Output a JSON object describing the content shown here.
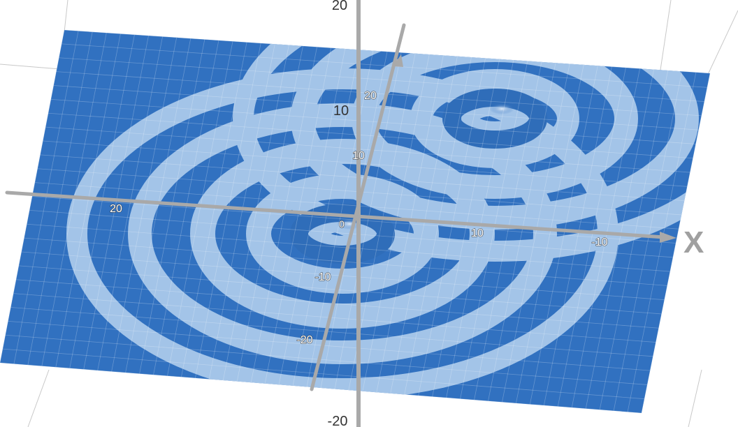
{
  "chart_data": {
    "type": "surface-3d",
    "description_text": "",
    "axes": {
      "x": {
        "label": "X",
        "ticks": [
          "20",
          "10",
          "0",
          "-10",
          "-20"
        ]
      },
      "y": {
        "ticks": [
          "20",
          "10",
          "-10",
          "-20"
        ]
      },
      "z": {
        "ticks": [
          "20",
          "10",
          "-20"
        ]
      }
    },
    "surface": {
      "centers": [
        [
          0,
          0
        ],
        [
          10,
          15
        ]
      ],
      "pattern": "concentric ripples",
      "colors": {
        "dark": "#3171c0",
        "light": "#a3c4e8",
        "axis": "#a9a9a9"
      }
    },
    "grid": true
  }
}
